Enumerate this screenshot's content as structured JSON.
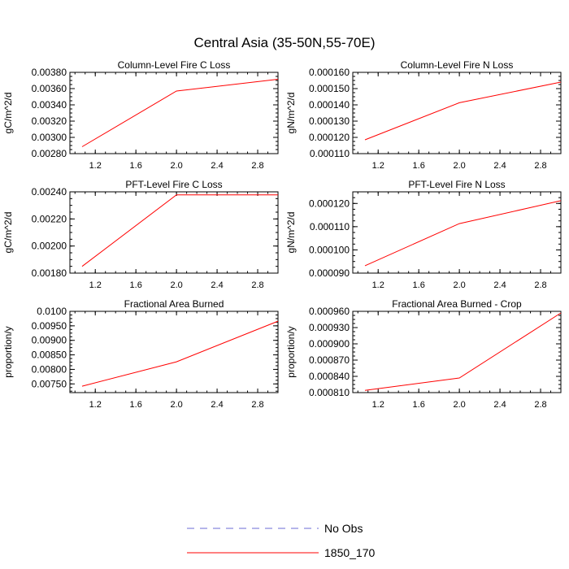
{
  "figure": {
    "title": "Central Asia (35-50N,55-70E)"
  },
  "legend": {
    "placement": "bottom-center",
    "entries": [
      {
        "label": "No Obs",
        "color": "#6b6bd6",
        "style": "dashed"
      },
      {
        "label": "1850_170",
        "color": "#ff0000",
        "style": "solid"
      }
    ]
  },
  "chart_data": [
    {
      "type": "line",
      "title": "Column-Level Fire C Loss",
      "ylabel": "gC/m^2/d",
      "xlim": [
        0.95,
        3.0
      ],
      "ylim": [
        0.0028,
        0.0038
      ],
      "xticks": [
        1.2,
        1.6,
        2.0,
        2.4,
        2.8
      ],
      "xtick_labels": [
        "1.2",
        "1.6",
        "2.0",
        "2.4",
        "2.8"
      ],
      "yticks": [
        0.0028,
        0.003,
        0.0032,
        0.0034,
        0.0036,
        0.0038
      ],
      "ytick_labels": [
        "0.00280",
        "0.00300",
        "0.00320",
        "0.00340",
        "0.00360",
        "0.00380"
      ],
      "series": [
        {
          "name": "1850_170",
          "color": "#ff0000",
          "x": [
            1.07,
            2.0,
            3.0
          ],
          "y": [
            0.002885,
            0.00357,
            0.003715
          ]
        }
      ]
    },
    {
      "type": "line",
      "title": "Column-Level Fire N Loss",
      "ylabel": "gN/m^2/d",
      "xlim": [
        0.95,
        3.0
      ],
      "ylim": [
        0.00011,
        0.00016
      ],
      "xticks": [
        1.2,
        1.6,
        2.0,
        2.4,
        2.8
      ],
      "xtick_labels": [
        "1.2",
        "1.6",
        "2.0",
        "2.4",
        "2.8"
      ],
      "yticks": [
        0.00011,
        0.00012,
        0.00013,
        0.00014,
        0.00015,
        0.00016
      ],
      "ytick_labels": [
        "0.000110",
        "0.000120",
        "0.000130",
        "0.000140",
        "0.000150",
        "0.000160"
      ],
      "series": [
        {
          "name": "1850_170",
          "color": "#ff0000",
          "x": [
            1.07,
            2.0,
            3.0
          ],
          "y": [
            0.0001185,
            0.0001413,
            0.000154
          ]
        }
      ]
    },
    {
      "type": "line",
      "title": "PFT-Level Fire C Loss",
      "ylabel": "gC/m^2/d",
      "xlim": [
        0.95,
        3.0
      ],
      "ylim": [
        0.0018,
        0.0024
      ],
      "xticks": [
        1.2,
        1.6,
        2.0,
        2.4,
        2.8
      ],
      "xtick_labels": [
        "1.2",
        "1.6",
        "2.0",
        "2.4",
        "2.8"
      ],
      "yticks": [
        0.0018,
        0.002,
        0.0022,
        0.0024
      ],
      "ytick_labels": [
        "0.00180",
        "0.00200",
        "0.00220",
        "0.00240"
      ],
      "series": [
        {
          "name": "1850_170",
          "color": "#ff0000",
          "x": [
            1.07,
            2.0,
            3.0
          ],
          "y": [
            0.00185,
            0.002378,
            0.002378
          ]
        }
      ]
    },
    {
      "type": "line",
      "title": "PFT-Level Fire N Loss",
      "ylabel": "gN/m^2/d",
      "xlim": [
        0.95,
        3.0
      ],
      "ylim": [
        9e-05,
        0.000125
      ],
      "xticks": [
        1.2,
        1.6,
        2.0,
        2.4,
        2.8
      ],
      "xtick_labels": [
        "1.2",
        "1.6",
        "2.0",
        "2.4",
        "2.8"
      ],
      "yticks": [
        9e-05,
        0.0001,
        0.00011,
        0.00012
      ],
      "ytick_labels": [
        "0.000090",
        "0.000100",
        "0.000110",
        "0.000120"
      ],
      "series": [
        {
          "name": "1850_170",
          "color": "#ff0000",
          "x": [
            1.07,
            2.0,
            3.0
          ],
          "y": [
            9.32e-05,
            0.0001113,
            0.0001212
          ]
        }
      ]
    },
    {
      "type": "line",
      "title": "Fractional Area Burned",
      "ylabel": "proportion/y",
      "xlim": [
        0.95,
        3.0
      ],
      "ylim": [
        0.0072,
        0.01
      ],
      "xticks": [
        1.2,
        1.6,
        2.0,
        2.4,
        2.8
      ],
      "xtick_labels": [
        "1.2",
        "1.6",
        "2.0",
        "2.4",
        "2.8"
      ],
      "yticks": [
        0.0075,
        0.008,
        0.0085,
        0.009,
        0.0095,
        0.01
      ],
      "ytick_labels": [
        "0.00750",
        "0.00800",
        "0.00850",
        "0.00900",
        "0.00950",
        "0.0100"
      ],
      "series": [
        {
          "name": "1850_170",
          "color": "#ff0000",
          "x": [
            1.07,
            2.0,
            3.0
          ],
          "y": [
            0.00742,
            0.00826,
            0.00966
          ]
        }
      ]
    },
    {
      "type": "line",
      "title": "Fractional Area Burned - Crop",
      "ylabel": "proportion/y",
      "xlim": [
        0.95,
        3.0
      ],
      "ylim": [
        0.00081,
        0.00096
      ],
      "xticks": [
        1.2,
        1.6,
        2.0,
        2.4,
        2.8
      ],
      "xtick_labels": [
        "1.2",
        "1.6",
        "2.0",
        "2.4",
        "2.8"
      ],
      "yticks": [
        0.00081,
        0.00084,
        0.00087,
        0.0009,
        0.00093,
        0.00096
      ],
      "ytick_labels": [
        "0.000810",
        "0.000840",
        "0.000870",
        "0.000900",
        "0.000930",
        "0.000960"
      ],
      "series": [
        {
          "name": "1850_170",
          "color": "#ff0000",
          "x": [
            1.07,
            2.0,
            3.0
          ],
          "y": [
            0.000814,
            0.000837,
            0.000957
          ]
        }
      ]
    }
  ]
}
